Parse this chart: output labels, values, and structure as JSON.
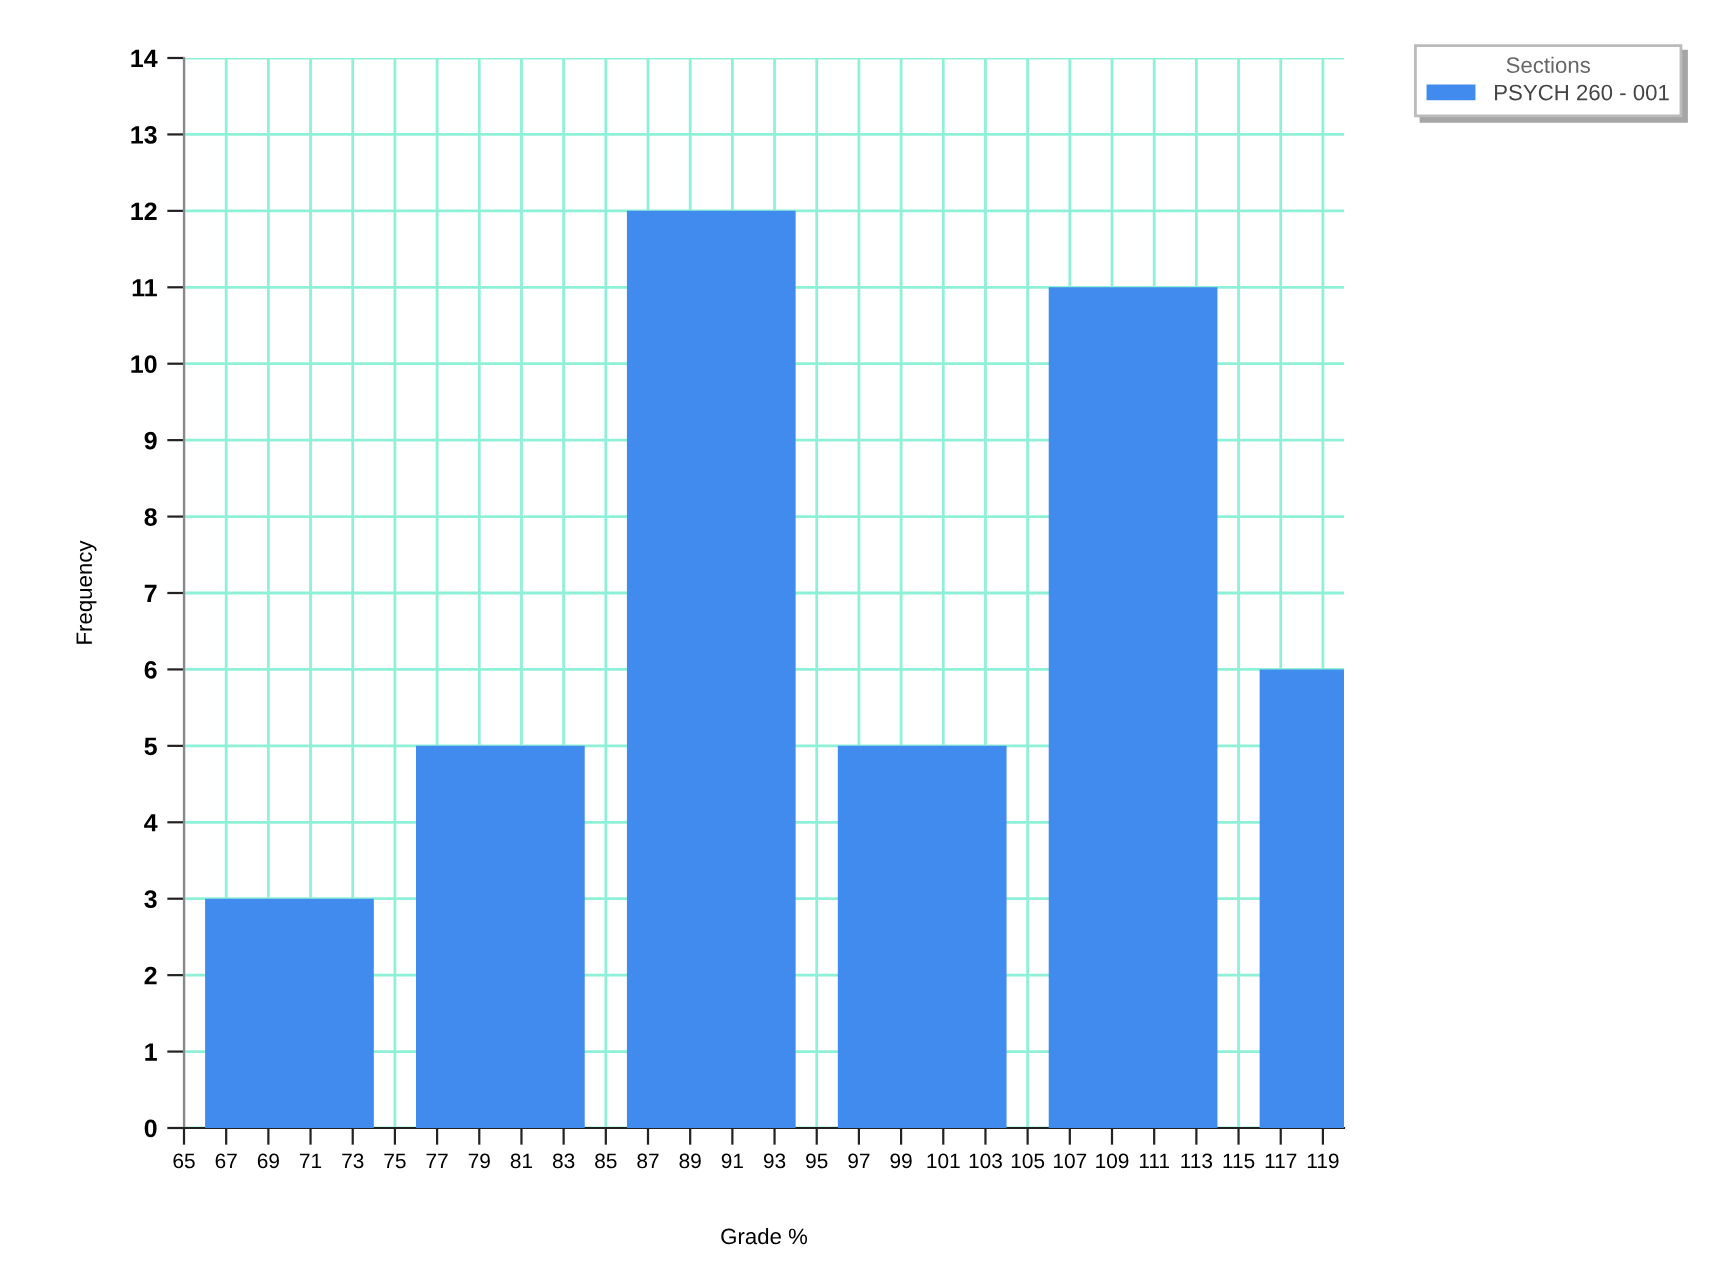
{
  "chart_data": {
    "type": "bar",
    "xlabel": "Grade %",
    "ylabel": "Frequency",
    "legend_title": "Sections",
    "x": [
      70,
      80,
      90,
      100,
      110,
      120
    ],
    "series": [
      {
        "name": "PSYCH 260 - 001",
        "color": "#418aee",
        "values": [
          3,
          5,
          12,
          5,
          11,
          6
        ]
      }
    ],
    "xlim": [
      65,
      120
    ],
    "xticks": [
      65,
      67,
      69,
      71,
      73,
      75,
      77,
      79,
      81,
      83,
      85,
      87,
      89,
      91,
      93,
      95,
      97,
      99,
      101,
      103,
      105,
      107,
      109,
      111,
      113,
      115,
      117,
      119
    ],
    "ylim": [
      0,
      14
    ],
    "yticks": [
      0,
      1,
      2,
      3,
      4,
      5,
      6,
      7,
      8,
      9,
      10,
      11,
      12,
      13,
      14
    ],
    "grid": true,
    "legend": "top right"
  }
}
